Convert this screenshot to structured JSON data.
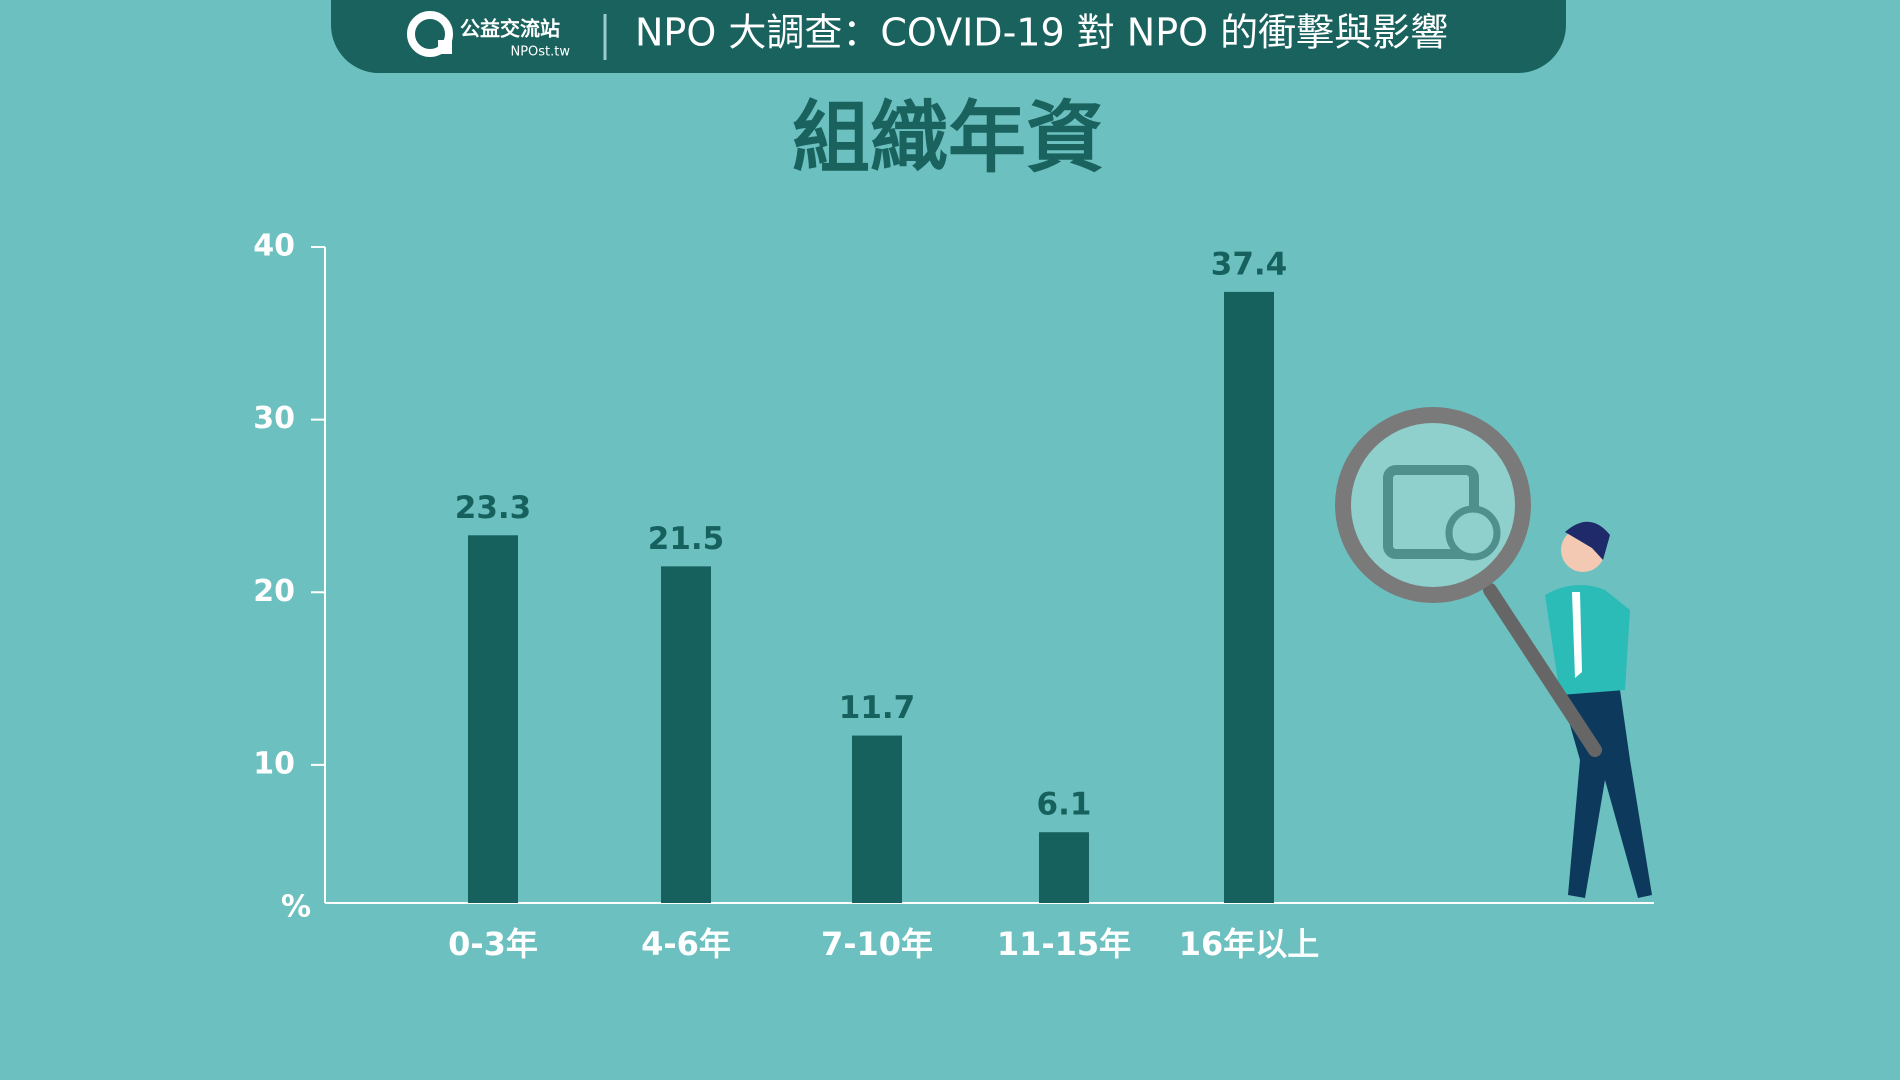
{
  "header": {
    "logo_name": "公益交流站",
    "logo_url": "NPOst.tw",
    "title": "NPO 大調查：COVID-19 對 NPO 的衝擊與影響"
  },
  "chart_data": {
    "type": "bar",
    "title": "組織年資",
    "categories": [
      "0-3年",
      "4-6年",
      "7-10年",
      "11-15年",
      "16年以上"
    ],
    "values": [
      23.3,
      21.5,
      11.7,
      6.1,
      37.4
    ],
    "color": "#16615e",
    "ylabel": "%",
    "ylim": [
      2,
      40
    ],
    "yticks": [
      10,
      20,
      30,
      40
    ],
    "grid": false
  }
}
